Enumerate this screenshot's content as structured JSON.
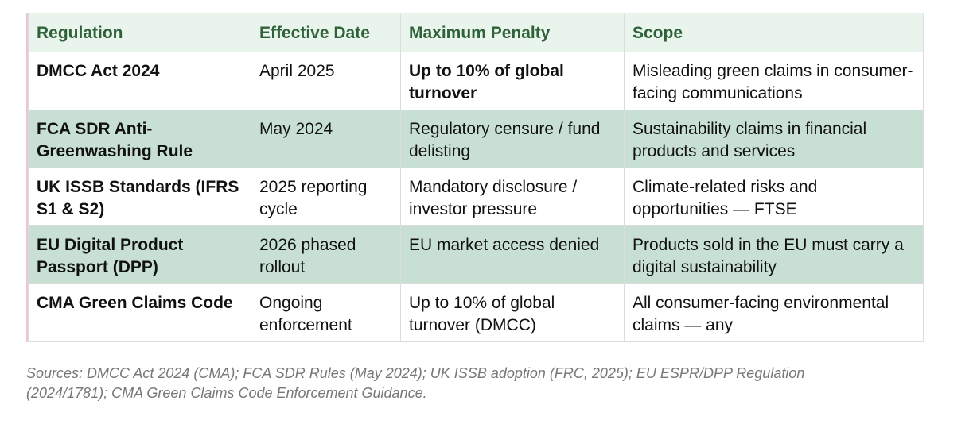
{
  "table": {
    "header": [
      "Regulation",
      "Effective Date",
      "Maximum Penalty",
      "Scope"
    ],
    "rows": [
      [
        "DMCC Act 2024",
        "April 2025",
        "Up to 10% of global turnover",
        "Misleading green claims in consumer-facing communications"
      ],
      [
        "FCA SDR Anti-Greenwashing Rule",
        "May 2024",
        "Regulatory censure / fund delisting",
        "Sustainability claims in financial products and services"
      ],
      [
        "UK ISSB Standards (IFRS S1 & S2)",
        "2025 reporting cycle",
        "Mandatory disclosure / investor pressure",
        "Climate-related risks and opportunities — FTSE"
      ],
      [
        "EU Digital Product Passport (DPP)",
        "2026 phased rollout",
        "EU market access denied",
        "Products sold in the EU must carry a digital sustainability"
      ],
      [
        "CMA Green Claims Code",
        "Ongoing enforcement",
        "Up to 10% of global turnover (DMCC)",
        "All consumer-facing environmental claims — any"
      ]
    ]
  },
  "footnote": "Sources: DMCC Act 2024 (CMA); FCA SDR Rules (May 2024); UK ISSB adoption (FRC, 2025); EU ESPR/DPP Regulation (2024/1781); CMA Green Claims Code Enforcement Guidance."
}
